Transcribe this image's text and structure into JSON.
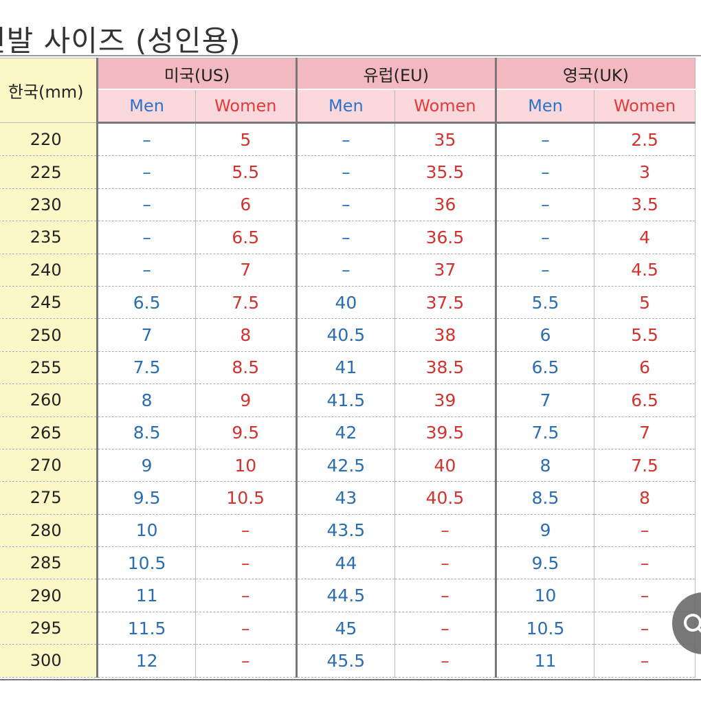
{
  "title": "신발 사이즈 (성인용)",
  "table": {
    "korea_header": "한국(mm)",
    "countries": [
      "미국(US)",
      "유럽(EU)",
      "영국(UK)"
    ],
    "sub_men": "Men",
    "sub_women": "Women",
    "rows": [
      {
        "kr": "220",
        "us_m": "–",
        "us_w": "5",
        "eu_m": "–",
        "eu_w": "35",
        "uk_m": "–",
        "uk_w": "2.5"
      },
      {
        "kr": "225",
        "us_m": "–",
        "us_w": "5.5",
        "eu_m": "–",
        "eu_w": "35.5",
        "uk_m": "–",
        "uk_w": "3"
      },
      {
        "kr": "230",
        "us_m": "–",
        "us_w": "6",
        "eu_m": "–",
        "eu_w": "36",
        "uk_m": "–",
        "uk_w": "3.5"
      },
      {
        "kr": "235",
        "us_m": "–",
        "us_w": "6.5",
        "eu_m": "–",
        "eu_w": "36.5",
        "uk_m": "–",
        "uk_w": "4"
      },
      {
        "kr": "240",
        "us_m": "–",
        "us_w": "7",
        "eu_m": "–",
        "eu_w": "37",
        "uk_m": "–",
        "uk_w": "4.5"
      },
      {
        "kr": "245",
        "us_m": "6.5",
        "us_w": "7.5",
        "eu_m": "40",
        "eu_w": "37.5",
        "uk_m": "5.5",
        "uk_w": "5"
      },
      {
        "kr": "250",
        "us_m": "7",
        "us_w": "8",
        "eu_m": "40.5",
        "eu_w": "38",
        "uk_m": "6",
        "uk_w": "5.5"
      },
      {
        "kr": "255",
        "us_m": "7.5",
        "us_w": "8.5",
        "eu_m": "41",
        "eu_w": "38.5",
        "uk_m": "6.5",
        "uk_w": "6"
      },
      {
        "kr": "260",
        "us_m": "8",
        "us_w": "9",
        "eu_m": "41.5",
        "eu_w": "39",
        "uk_m": "7",
        "uk_w": "6.5"
      },
      {
        "kr": "265",
        "us_m": "8.5",
        "us_w": "9.5",
        "eu_m": "42",
        "eu_w": "39.5",
        "uk_m": "7.5",
        "uk_w": "7"
      },
      {
        "kr": "270",
        "us_m": "9",
        "us_w": "10",
        "eu_m": "42.5",
        "eu_w": "40",
        "uk_m": "8",
        "uk_w": "7.5"
      },
      {
        "kr": "275",
        "us_m": "9.5",
        "us_w": "10.5",
        "eu_m": "43",
        "eu_w": "40.5",
        "uk_m": "8.5",
        "uk_w": "8"
      },
      {
        "kr": "280",
        "us_m": "10",
        "us_w": "–",
        "eu_m": "43.5",
        "eu_w": "–",
        "uk_m": "9",
        "uk_w": "–"
      },
      {
        "kr": "285",
        "us_m": "10.5",
        "us_w": "–",
        "eu_m": "44",
        "eu_w": "–",
        "uk_m": "9.5",
        "uk_w": "–"
      },
      {
        "kr": "290",
        "us_m": "11",
        "us_w": "–",
        "eu_m": "44.5",
        "eu_w": "–",
        "uk_m": "10",
        "uk_w": "–"
      },
      {
        "kr": "295",
        "us_m": "11.5",
        "us_w": "–",
        "eu_m": "45",
        "eu_w": "–",
        "uk_m": "10.5",
        "uk_w": "–"
      },
      {
        "kr": "300",
        "us_m": "12",
        "us_w": "–",
        "eu_m": "45.5",
        "eu_w": "–",
        "uk_m": "11",
        "uk_w": "–"
      }
    ]
  },
  "overlay": {
    "icon": "search-icon"
  },
  "colors": {
    "korea_bg": "#fbf7c7",
    "country_bg": "#f2b9c1",
    "sub_bg": "#fbd8dc",
    "men_text": "#2a6db3",
    "women_text": "#d2332f"
  }
}
